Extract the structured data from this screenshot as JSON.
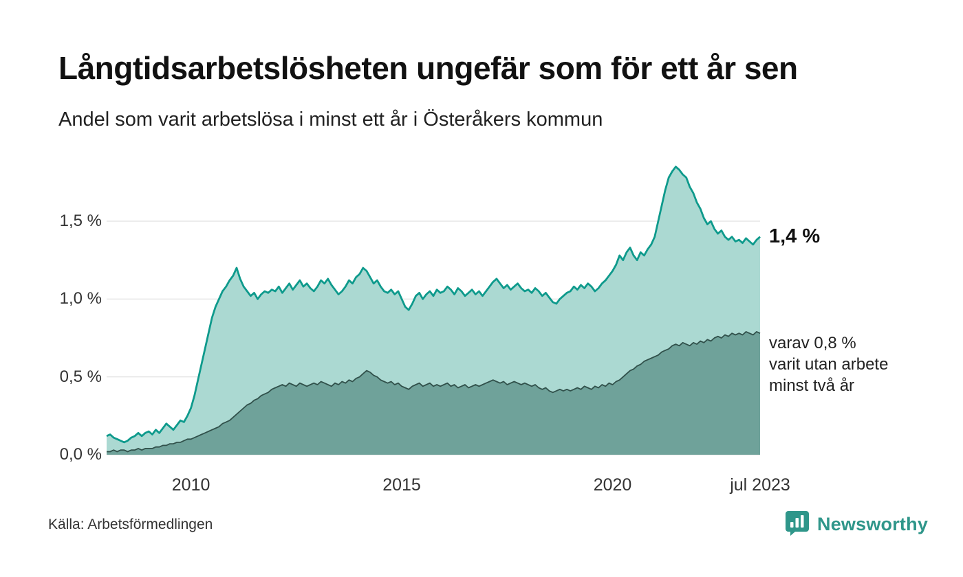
{
  "page": {
    "title": "Långtidsarbetslösheten ungefär som för ett år sen",
    "subtitle": "Andel som varit arbetslösa i minst ett år i Österåkers kommun",
    "source": "Källa: Arbetsförmedlingen",
    "brand": {
      "name": "Newsworthy",
      "icon": "newsworthy-bar-chart-icon",
      "color": "#2f968a"
    }
  },
  "annotations": {
    "series1_end_label": "1,4 %",
    "series2_end_label": "varav 0,8 %\nvarit utan arbete\nminst två år"
  },
  "chart_data": {
    "type": "area",
    "title": "Långtidsarbetslösheten ungefär som för ett år sen",
    "subtitle": "Andel som varit arbetslösa i minst ett år i Österåkers kommun",
    "x_unit": "month",
    "x_start": "2008-01",
    "x_end": "2023-07",
    "grid": true,
    "ylim": [
      0,
      1.95
    ],
    "y_ticks": [
      {
        "label": "0,0 %",
        "value": 0.0
      },
      {
        "label": "0,5 %",
        "value": 0.5
      },
      {
        "label": "1,0 %",
        "value": 1.0
      },
      {
        "label": "1,5 %",
        "value": 1.5
      }
    ],
    "x_ticks": [
      {
        "label": "2010",
        "index": 24
      },
      {
        "label": "2015",
        "index": 84
      },
      {
        "label": "2020",
        "index": 144
      },
      {
        "label": "jul 2023",
        "index": 186
      }
    ],
    "series": [
      {
        "name": "Andel arbetslösa minst ett år",
        "end_value": "1,4 %",
        "color": "#0e9a8c",
        "fill": "#abd9d2",
        "values": [
          0.12,
          0.13,
          0.11,
          0.1,
          0.09,
          0.08,
          0.09,
          0.11,
          0.12,
          0.14,
          0.12,
          0.14,
          0.15,
          0.13,
          0.16,
          0.14,
          0.17,
          0.2,
          0.18,
          0.16,
          0.19,
          0.22,
          0.21,
          0.25,
          0.3,
          0.38,
          0.48,
          0.58,
          0.68,
          0.78,
          0.88,
          0.95,
          1.0,
          1.05,
          1.08,
          1.12,
          1.15,
          1.2,
          1.13,
          1.08,
          1.05,
          1.02,
          1.04,
          1.0,
          1.03,
          1.05,
          1.04,
          1.06,
          1.05,
          1.08,
          1.04,
          1.07,
          1.1,
          1.06,
          1.09,
          1.12,
          1.08,
          1.1,
          1.07,
          1.05,
          1.08,
          1.12,
          1.1,
          1.13,
          1.09,
          1.06,
          1.03,
          1.05,
          1.08,
          1.12,
          1.1,
          1.14,
          1.16,
          1.2,
          1.18,
          1.14,
          1.1,
          1.12,
          1.08,
          1.05,
          1.04,
          1.06,
          1.03,
          1.05,
          1.0,
          0.95,
          0.93,
          0.97,
          1.02,
          1.04,
          1.0,
          1.03,
          1.05,
          1.02,
          1.06,
          1.04,
          1.05,
          1.08,
          1.06,
          1.03,
          1.07,
          1.05,
          1.02,
          1.04,
          1.06,
          1.03,
          1.05,
          1.02,
          1.05,
          1.08,
          1.11,
          1.13,
          1.1,
          1.07,
          1.09,
          1.06,
          1.08,
          1.1,
          1.07,
          1.05,
          1.06,
          1.04,
          1.07,
          1.05,
          1.02,
          1.04,
          1.01,
          0.98,
          0.97,
          1.0,
          1.02,
          1.04,
          1.05,
          1.08,
          1.06,
          1.09,
          1.07,
          1.1,
          1.08,
          1.05,
          1.07,
          1.1,
          1.12,
          1.15,
          1.18,
          1.22,
          1.28,
          1.25,
          1.3,
          1.33,
          1.28,
          1.25,
          1.3,
          1.28,
          1.32,
          1.35,
          1.4,
          1.5,
          1.6,
          1.7,
          1.78,
          1.82,
          1.85,
          1.83,
          1.8,
          1.78,
          1.72,
          1.68,
          1.62,
          1.58,
          1.52,
          1.48,
          1.5,
          1.45,
          1.42,
          1.44,
          1.4,
          1.38,
          1.4,
          1.37,
          1.38,
          1.36,
          1.39,
          1.37,
          1.35,
          1.38,
          1.4
        ]
      },
      {
        "name": "varav utan arbete minst två år",
        "end_value": "0,8 %",
        "color": "#31514b",
        "fill": "#6fa29a",
        "values": [
          0.02,
          0.02,
          0.03,
          0.02,
          0.03,
          0.03,
          0.02,
          0.03,
          0.03,
          0.04,
          0.03,
          0.04,
          0.04,
          0.04,
          0.05,
          0.05,
          0.06,
          0.06,
          0.07,
          0.07,
          0.08,
          0.08,
          0.09,
          0.1,
          0.1,
          0.11,
          0.12,
          0.13,
          0.14,
          0.15,
          0.16,
          0.17,
          0.18,
          0.2,
          0.21,
          0.22,
          0.24,
          0.26,
          0.28,
          0.3,
          0.32,
          0.33,
          0.35,
          0.36,
          0.38,
          0.39,
          0.4,
          0.42,
          0.43,
          0.44,
          0.45,
          0.44,
          0.46,
          0.45,
          0.44,
          0.46,
          0.45,
          0.44,
          0.45,
          0.46,
          0.45,
          0.47,
          0.46,
          0.45,
          0.44,
          0.46,
          0.45,
          0.47,
          0.46,
          0.48,
          0.47,
          0.49,
          0.5,
          0.52,
          0.54,
          0.53,
          0.51,
          0.5,
          0.48,
          0.47,
          0.46,
          0.47,
          0.45,
          0.46,
          0.44,
          0.43,
          0.42,
          0.44,
          0.45,
          0.46,
          0.44,
          0.45,
          0.46,
          0.44,
          0.45,
          0.44,
          0.45,
          0.46,
          0.44,
          0.45,
          0.43,
          0.44,
          0.45,
          0.43,
          0.44,
          0.45,
          0.44,
          0.45,
          0.46,
          0.47,
          0.48,
          0.47,
          0.46,
          0.47,
          0.45,
          0.46,
          0.47,
          0.46,
          0.45,
          0.46,
          0.45,
          0.44,
          0.45,
          0.43,
          0.42,
          0.43,
          0.41,
          0.4,
          0.41,
          0.42,
          0.41,
          0.42,
          0.41,
          0.42,
          0.43,
          0.42,
          0.44,
          0.43,
          0.42,
          0.44,
          0.43,
          0.45,
          0.44,
          0.46,
          0.45,
          0.47,
          0.48,
          0.5,
          0.52,
          0.54,
          0.55,
          0.57,
          0.58,
          0.6,
          0.61,
          0.62,
          0.63,
          0.64,
          0.66,
          0.67,
          0.68,
          0.7,
          0.71,
          0.7,
          0.72,
          0.71,
          0.7,
          0.72,
          0.71,
          0.73,
          0.72,
          0.74,
          0.73,
          0.75,
          0.76,
          0.75,
          0.77,
          0.76,
          0.78,
          0.77,
          0.78,
          0.77,
          0.79,
          0.78,
          0.77,
          0.79,
          0.78
        ]
      }
    ]
  }
}
